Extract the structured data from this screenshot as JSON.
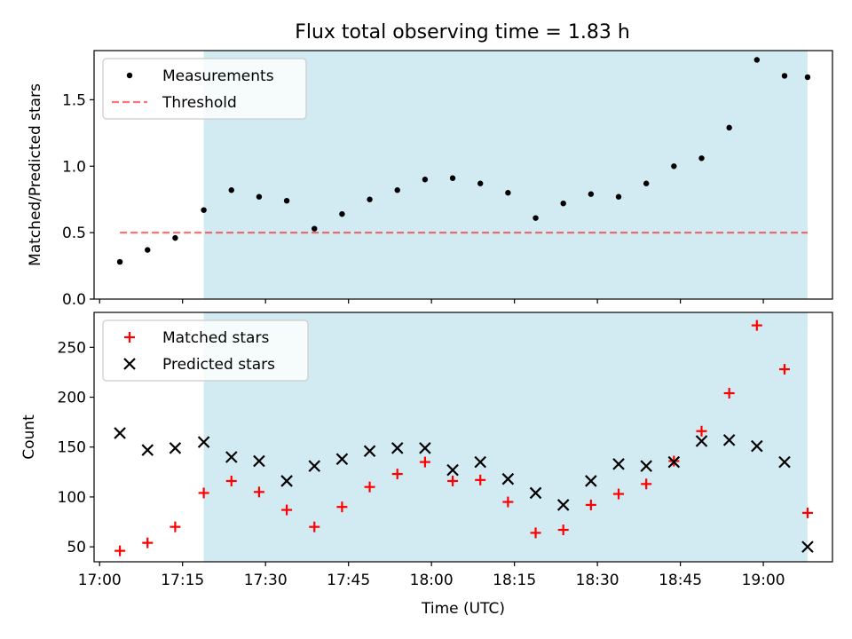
{
  "title": "Flux total observing time = 1.83 h",
  "colors": {
    "shade": "#add8e6",
    "measurement": "#000000",
    "threshold": "#ff0000",
    "matched": "#ff0000",
    "predicted": "#000000"
  },
  "chart_data": [
    {
      "type": "scatter",
      "ylabel": "Matched/Predicted stars",
      "ylim": [
        0,
        1.87
      ],
      "yticks": [
        0.0,
        0.5,
        1.0,
        1.5
      ],
      "ytick_labels": [
        "0.0",
        "0.5",
        "1.0",
        "1.5"
      ],
      "legend_position": "upper-left",
      "shaded_interval": [
        "17:18:50",
        "19:08:00"
      ],
      "threshold": {
        "name": "Threshold",
        "y": 0.5,
        "x_range": [
          "17:03:40",
          "19:08:00"
        ]
      },
      "series": [
        {
          "name": "Measurements",
          "marker": "dot",
          "x": [
            "17:03:40",
            "17:08:40",
            "17:13:40",
            "17:18:50",
            "17:23:50",
            "17:28:50",
            "17:33:50",
            "17:38:50",
            "17:43:50",
            "17:48:50",
            "17:53:50",
            "17:58:50",
            "18:03:50",
            "18:08:50",
            "18:13:50",
            "18:18:50",
            "18:23:50",
            "18:28:50",
            "18:33:50",
            "18:38:50",
            "18:43:50",
            "18:48:50",
            "18:53:50",
            "18:58:50",
            "19:03:50",
            "19:08:00"
          ],
          "y": [
            0.28,
            0.37,
            0.46,
            0.67,
            0.82,
            0.77,
            0.74,
            0.53,
            0.64,
            0.75,
            0.82,
            0.9,
            0.91,
            0.87,
            0.8,
            0.61,
            0.72,
            0.79,
            0.77,
            0.87,
            1.0,
            1.06,
            1.29,
            1.8,
            1.68,
            1.67
          ]
        }
      ]
    },
    {
      "type": "scatter",
      "ylabel": "Count",
      "xlabel": "Time (UTC)",
      "ylim": [
        35,
        285
      ],
      "yticks": [
        50,
        100,
        150,
        200,
        250
      ],
      "ytick_labels": [
        "50",
        "100",
        "150",
        "200",
        "250"
      ],
      "xticks": [
        "17:00",
        "17:15",
        "17:30",
        "17:45",
        "18:00",
        "18:15",
        "18:30",
        "18:45",
        "19:00"
      ],
      "xlim": [
        "16:59:00",
        "19:12:30"
      ],
      "legend_position": "upper-left",
      "shaded_interval": [
        "17:18:50",
        "19:08:00"
      ],
      "series": [
        {
          "name": "Matched stars",
          "marker": "plus",
          "x": [
            "17:03:40",
            "17:08:40",
            "17:13:40",
            "17:18:50",
            "17:23:50",
            "17:28:50",
            "17:33:50",
            "17:38:50",
            "17:43:50",
            "17:48:50",
            "17:53:50",
            "17:58:50",
            "18:03:50",
            "18:08:50",
            "18:13:50",
            "18:18:50",
            "18:23:50",
            "18:28:50",
            "18:33:50",
            "18:38:50",
            "18:43:50",
            "18:48:50",
            "18:53:50",
            "18:58:50",
            "19:03:50",
            "19:08:00"
          ],
          "y": [
            46,
            54,
            70,
            104,
            116,
            105,
            87,
            70,
            90,
            110,
            123,
            135,
            116,
            117,
            95,
            64,
            67,
            92,
            103,
            113,
            136,
            166,
            204,
            272,
            228,
            84
          ]
        },
        {
          "name": "Predicted stars",
          "marker": "x",
          "x": [
            "17:03:40",
            "17:08:40",
            "17:13:40",
            "17:18:50",
            "17:23:50",
            "17:28:50",
            "17:33:50",
            "17:38:50",
            "17:43:50",
            "17:48:50",
            "17:53:50",
            "17:58:50",
            "18:03:50",
            "18:08:50",
            "18:13:50",
            "18:18:50",
            "18:23:50",
            "18:28:50",
            "18:33:50",
            "18:38:50",
            "18:43:50",
            "18:48:50",
            "18:53:50",
            "18:58:50",
            "19:03:50",
            "19:08:00"
          ],
          "y": [
            164,
            147,
            149,
            155,
            140,
            136,
            116,
            131,
            138,
            146,
            149,
            149,
            127,
            135,
            118,
            104,
            92,
            116,
            133,
            131,
            135,
            156,
            157,
            151,
            135,
            50
          ]
        }
      ]
    }
  ]
}
